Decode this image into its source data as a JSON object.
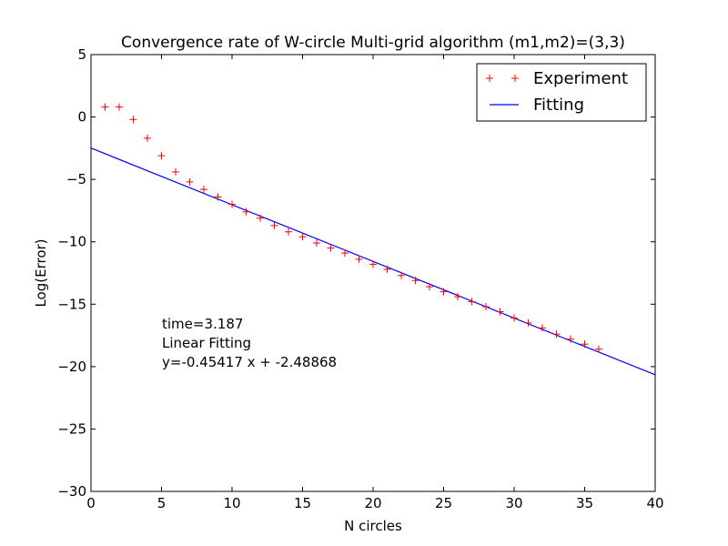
{
  "chart_data": {
    "type": "scatter",
    "title": "Convergence rate of W-circle Multi-grid algorithm (m1,m2)=(3,3)",
    "xlabel": "N circles",
    "ylabel": "Log(Error)",
    "xlim": [
      0,
      40
    ],
    "ylim": [
      -30,
      5
    ],
    "xticks": [
      0,
      5,
      10,
      15,
      20,
      25,
      30,
      35,
      40
    ],
    "yticks": [
      5,
      0,
      -5,
      -10,
      -15,
      -20,
      -25,
      -30
    ],
    "grid": false,
    "legend_position": "top-right",
    "series": [
      {
        "name": "Experiment",
        "kind": "marker-plus",
        "color": "#ff0000",
        "x": [
          1,
          2,
          3,
          4,
          5,
          6,
          7,
          8,
          9,
          10,
          11,
          12,
          13,
          14,
          15,
          16,
          17,
          18,
          19,
          20,
          21,
          22,
          23,
          24,
          25,
          26,
          27,
          28,
          29,
          30,
          31,
          32,
          33,
          34,
          35,
          36
        ],
        "y": [
          0.8,
          0.8,
          -0.2,
          -1.7,
          -3.1,
          -4.4,
          -5.2,
          -5.8,
          -6.4,
          -7.0,
          -7.6,
          -8.1,
          -8.7,
          -9.2,
          -9.6,
          -10.1,
          -10.5,
          -10.9,
          -11.4,
          -11.8,
          -12.2,
          -12.7,
          -13.1,
          -13.6,
          -14.0,
          -14.4,
          -14.8,
          -15.2,
          -15.6,
          -16.1,
          -16.5,
          -16.9,
          -17.4,
          -17.8,
          -18.2,
          -18.6
        ]
      },
      {
        "name": "Fitting",
        "kind": "line",
        "color": "#0000ff",
        "slope": -0.45417,
        "intercept": -2.48868,
        "x_range": [
          0,
          40
        ]
      }
    ],
    "annotation": {
      "lines": [
        "time=3.187",
        "Linear Fitting",
        "y=-0.45417 x + -2.48868"
      ],
      "anchor": [
        5,
        -16.2
      ]
    }
  }
}
